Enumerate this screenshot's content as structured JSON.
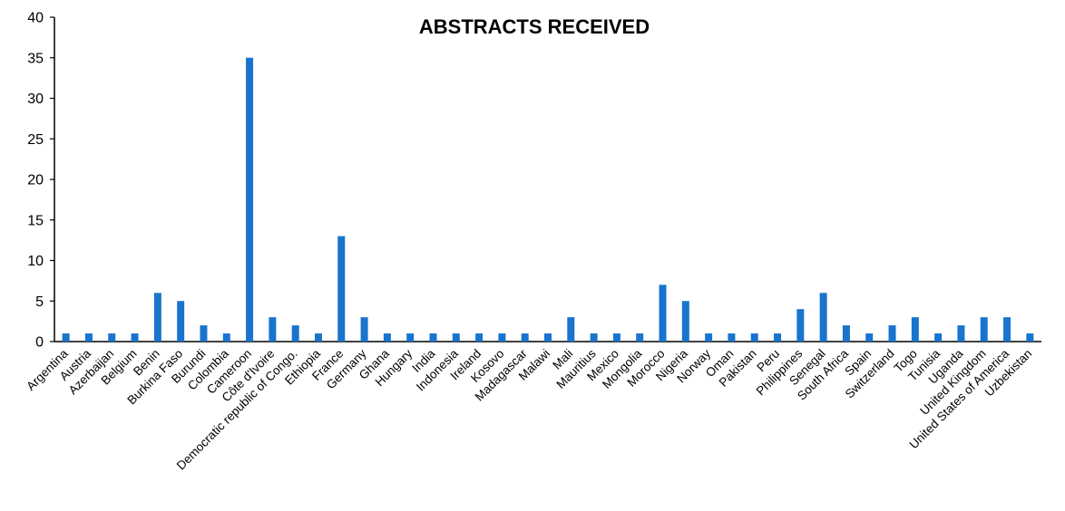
{
  "chart_data": {
    "type": "bar",
    "title": "ABSTRACTS RECEIVED",
    "xlabel": "",
    "ylabel": "",
    "ylim": [
      0,
      40
    ],
    "yticks": [
      0,
      5,
      10,
      15,
      20,
      25,
      30,
      35,
      40
    ],
    "grid": false,
    "legend": "none",
    "bar_color": "#1874CD",
    "categories": [
      "Argentina",
      "Austria",
      "Azerbaijan",
      "Belgium",
      "Benin",
      "Burkina Faso",
      "Burundi",
      "Colombia",
      "Cameroon",
      "Côte d'Ivoire",
      "Democratic republic of Congo.",
      "Ethiopia",
      "France",
      "Germany",
      "Ghana",
      "Hungary",
      "India",
      "Indonesia",
      "Ireland",
      "Kosovo",
      "Madagascar",
      "Malawi",
      "Mali",
      "Mauritius",
      "Mexico",
      "Mongolia",
      "Morocco",
      "Nigeria",
      "Norway",
      "Oman",
      "Pakistan",
      "Peru",
      "Philippines",
      "Senegal",
      "South Africa",
      "Spain",
      "Switzerland",
      "Togo",
      "Tunisia",
      "Uganda",
      "United Kingdom",
      "United States of America",
      "Uzbekistan"
    ],
    "values": [
      1,
      1,
      1,
      1,
      6,
      5,
      2,
      1,
      35,
      3,
      2,
      1,
      13,
      3,
      1,
      1,
      1,
      1,
      1,
      1,
      1,
      1,
      3,
      1,
      1,
      1,
      7,
      5,
      1,
      1,
      1,
      1,
      4,
      6,
      2,
      1,
      2,
      3,
      1,
      2,
      3,
      3,
      1
    ]
  }
}
